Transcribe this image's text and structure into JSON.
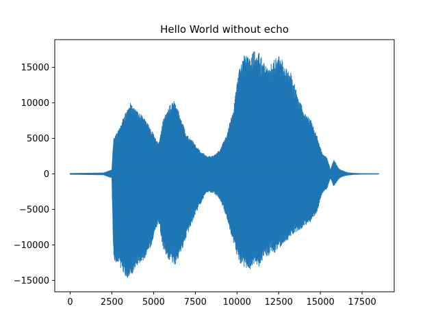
{
  "chart_data": {
    "type": "line",
    "title": "Hello World without echo",
    "xlabel": "",
    "ylabel": "",
    "xlim": [
      -925,
      19425
    ],
    "ylim": [
      -16600,
      18900
    ],
    "xticks": [
      0,
      2500,
      5000,
      7500,
      10000,
      12500,
      15000,
      17500
    ],
    "yticks": [
      -15000,
      -10000,
      -5000,
      0,
      5000,
      10000,
      15000
    ],
    "grid": false,
    "legend": "none",
    "series": [
      {
        "color": "#1f77b4",
        "envelope_x": [
          0,
          2000,
          2500,
          2600,
          2800,
          3000,
          3300,
          3600,
          4000,
          4300,
          4800,
          5300,
          5600,
          6000,
          6300,
          6600,
          7000,
          7400,
          7800,
          8200,
          8600,
          9000,
          9400,
          9800,
          10100,
          10400,
          10800,
          11000,
          11300,
          11600,
          11900,
          12300,
          12600,
          12900,
          13200,
          13600,
          14000,
          14400,
          14800,
          15100,
          15400,
          15600,
          15800,
          16100,
          16300,
          16600,
          17000,
          17500,
          18500
        ],
        "envelope_upper": [
          80,
          150,
          600,
          5000,
          6000,
          6900,
          8500,
          10000,
          9000,
          8500,
          6500,
          4200,
          8000,
          10000,
          10500,
          8000,
          5500,
          4500,
          3300,
          2500,
          2600,
          3500,
          5600,
          9500,
          14500,
          16800,
          16500,
          17300,
          17200,
          16000,
          15000,
          16500,
          16800,
          15000,
          14500,
          11500,
          8700,
          7800,
          5400,
          3000,
          2300,
          600,
          2000,
          800,
          500,
          200,
          100,
          50,
          30
        ],
        "envelope_lower": [
          -80,
          -150,
          -600,
          -12000,
          -12700,
          -13200,
          -14500,
          -14700,
          -13000,
          -12600,
          -10600,
          -6800,
          -11000,
          -12500,
          -12900,
          -11500,
          -8800,
          -6400,
          -4300,
          -2600,
          -2700,
          -3700,
          -6300,
          -10000,
          -12300,
          -13300,
          -13500,
          -12900,
          -13300,
          -11800,
          -11600,
          -11100,
          -10400,
          -10000,
          -8800,
          -8200,
          -7500,
          -6800,
          -5400,
          -2800,
          -2100,
          -600,
          -1800,
          -700,
          -400,
          -200,
          -100,
          -50,
          -30
        ]
      }
    ]
  }
}
